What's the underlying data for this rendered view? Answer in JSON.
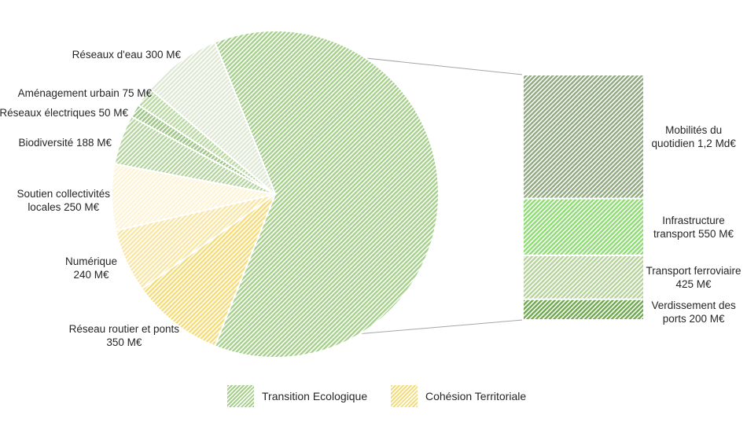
{
  "chart_data": {
    "type": "pie",
    "groups": [
      {
        "name": "Transition Ecologique",
        "color": "#a6cf8c"
      },
      {
        "name": "Cohésion Territoriale",
        "color": "#f2dc7e"
      }
    ],
    "slices": [
      {
        "label_lines": [
          "Réseaux d'eau 300 M€"
        ],
        "name": "Réseaux d'eau",
        "value": 300,
        "group": "Transition Ecologique",
        "color": "#dfe8d4"
      },
      {
        "label_lines": [
          "Aménagement urbain 75 M€"
        ],
        "name": "Aménagement urbain",
        "value": 75,
        "group": "Transition Ecologique",
        "color": "#b9d8a2"
      },
      {
        "label_lines": [
          "Réseaux électriques 50 M€"
        ],
        "name": "Réseaux électriques",
        "value": 50,
        "group": "Transition Ecologique",
        "color": "#9cc483"
      },
      {
        "label_lines": [
          "Biodiversité 188 M€"
        ],
        "name": "Biodiversité",
        "value": 188,
        "group": "Transition Ecologique",
        "color": "#b5d4a0"
      },
      {
        "label_lines": [
          "Soutien collectivités",
          "locales 250 M€"
        ],
        "name": "Soutien collectivités locales",
        "value": 250,
        "group": "Cohésion Territoriale",
        "color": "#fdf3d6"
      },
      {
        "label_lines": [
          "Numérique",
          "240 M€"
        ],
        "name": "Numérique",
        "value": 240,
        "group": "Cohésion Territoriale",
        "color": "#f8e6a4"
      },
      {
        "label_lines": [
          "Réseau routier et ponts",
          "350 M€"
        ],
        "name": "Réseau routier et ponts",
        "value": 350,
        "group": "Cohésion Territoriale",
        "color": "#f4dc7a"
      },
      {
        "label_lines": [],
        "name": "Mobilités",
        "value": 2375,
        "group": "Transition Ecologique",
        "color": "#a6cf8c",
        "exploded": true
      }
    ],
    "breakdown": [
      {
        "label_lines": [
          "Mobilités du",
          "quotidien 1,2 Md€"
        ],
        "name": "Mobilités du quotidien",
        "value": 1200,
        "color": "#8fa880"
      },
      {
        "label_lines": [
          "Infrastructure",
          "transport 550 M€"
        ],
        "name": "Infrastructure transport",
        "value": 550,
        "color": "#8cdc72"
      },
      {
        "label_lines": [
          "Transport ferroviaire",
          "425 M€"
        ],
        "name": "Transport ferroviaire",
        "value": 425,
        "color": "#b6d29c"
      },
      {
        "label_lines": [
          "Verdissement des",
          "ports 200 M€"
        ],
        "name": "Verdissement des ports",
        "value": 200,
        "color": "#6ea84c"
      }
    ]
  }
}
